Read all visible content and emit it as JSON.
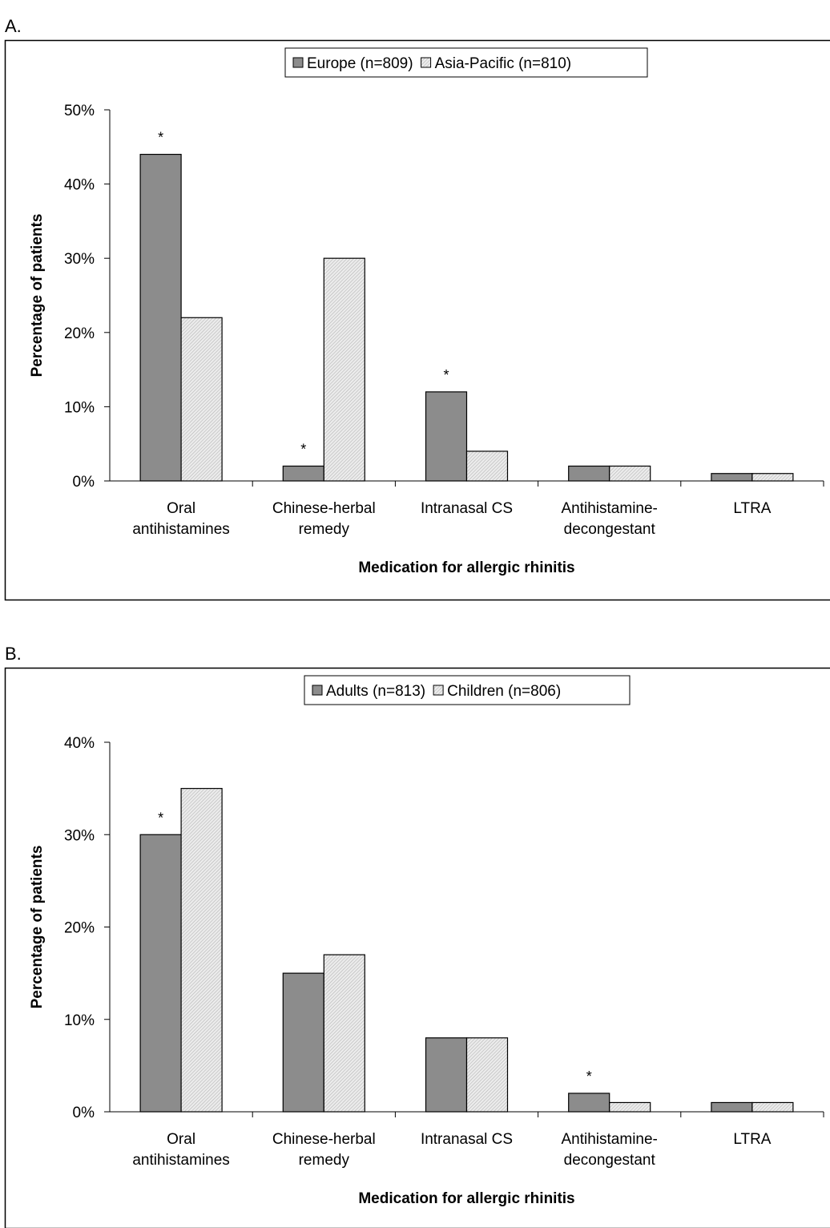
{
  "chart_data": [
    {
      "type": "bar",
      "panel_label": "A.",
      "xlabel": "Medication for allergic rhinitis",
      "ylabel": "Percentage of patients",
      "ylim": [
        0,
        50
      ],
      "yticks": [
        "0%",
        "10%",
        "20%",
        "30%",
        "40%",
        "50%"
      ],
      "categories": [
        [
          "Oral",
          "antihistamines"
        ],
        [
          "Chinese-herbal",
          "remedy"
        ],
        [
          "Intranasal CS"
        ],
        [
          "Antihistamine-",
          "decongestant"
        ],
        [
          "LTRA"
        ]
      ],
      "series": [
        {
          "name": "Europe (n=809)",
          "color": "#8c8c8c",
          "pattern": "solid",
          "values": [
            44,
            2,
            12,
            2,
            1
          ]
        },
        {
          "name": "Asia-Pacific (n=810)",
          "color": "#e2e2e2",
          "pattern": "hatched",
          "values": [
            22,
            30,
            4,
            2,
            1
          ]
        }
      ],
      "significance_marker": "*",
      "significant_categories": [
        0,
        1,
        2
      ],
      "legend_position": "top-center",
      "grid": false
    },
    {
      "type": "bar",
      "panel_label": "B.",
      "xlabel": "Medication for allergic rhinitis",
      "ylabel": "Percentage of patients",
      "ylim": [
        0,
        40
      ],
      "yticks": [
        "0%",
        "10%",
        "20%",
        "30%",
        "40%"
      ],
      "categories": [
        [
          "Oral",
          "antihistamines"
        ],
        [
          "Chinese-herbal",
          "remedy"
        ],
        [
          "Intranasal CS"
        ],
        [
          "Antihistamine-",
          "decongestant"
        ],
        [
          "LTRA"
        ]
      ],
      "series": [
        {
          "name": "Adults (n=813)",
          "color": "#8c8c8c",
          "pattern": "solid",
          "values": [
            30,
            15,
            8,
            2,
            1
          ]
        },
        {
          "name": "Children (n=806)",
          "color": "#e2e2e2",
          "pattern": "hatched",
          "values": [
            35,
            17,
            8,
            1,
            1
          ]
        }
      ],
      "significance_marker": "*",
      "significant_categories": [
        0,
        3
      ],
      "legend_position": "top-center",
      "grid": false
    }
  ]
}
